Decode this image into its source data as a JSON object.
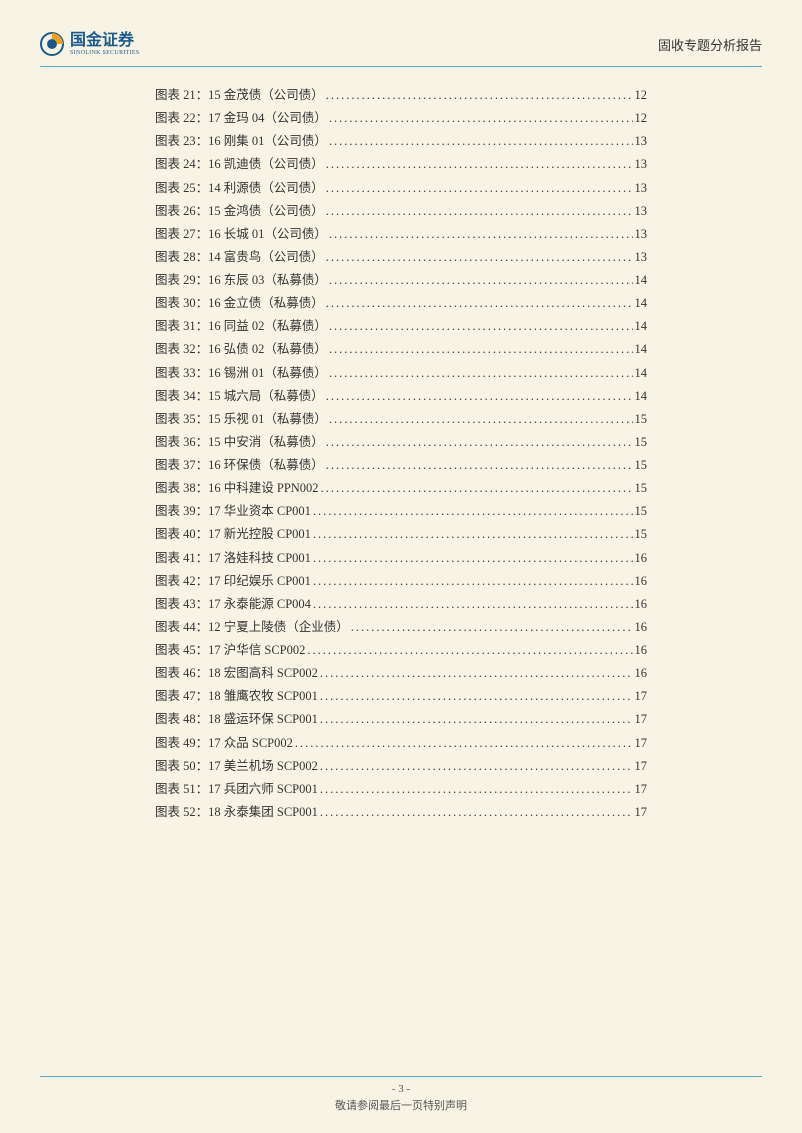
{
  "page_background": "#f8f4e5",
  "accent_color": "#5ba8c4",
  "header": {
    "logo_main": "国金证券",
    "logo_sub": "SINOLINK SECURITIES",
    "report_title": "固收专题分析报告"
  },
  "toc": [
    {
      "num": "图表 21：",
      "title": "15 金茂债（公司债）",
      "page": "12"
    },
    {
      "num": "图表 22：",
      "title": "17 金玛 04（公司债）",
      "page": "12"
    },
    {
      "num": "图表 23：",
      "title": "16 刚集 01（公司债）",
      "page": "13"
    },
    {
      "num": "图表 24：",
      "title": "16 凯迪债（公司债）",
      "page": "13"
    },
    {
      "num": "图表 25：",
      "title": "14 利源债（公司债）",
      "page": "13"
    },
    {
      "num": "图表 26：",
      "title": "15 金鸿债（公司债）",
      "page": "13"
    },
    {
      "num": "图表 27：",
      "title": "16 长城 01（公司债）",
      "page": "13"
    },
    {
      "num": "图表 28：",
      "title": "14 富贵鸟（公司债）",
      "page": "13"
    },
    {
      "num": "图表 29：",
      "title": "16 东辰 03（私募债）",
      "page": "14"
    },
    {
      "num": "图表 30：",
      "title": "16 金立债（私募债）",
      "page": "14"
    },
    {
      "num": "图表 31：",
      "title": "16 同益 02（私募债）",
      "page": "14"
    },
    {
      "num": "图表 32：",
      "title": "16 弘债 02（私募债）",
      "page": "14"
    },
    {
      "num": "图表 33：",
      "title": "16 锡洲 01（私募债）",
      "page": "14"
    },
    {
      "num": "图表 34：",
      "title": "15 城六局（私募债）",
      "page": "14"
    },
    {
      "num": "图表 35：",
      "title": "15 乐视 01（私募债）",
      "page": "15"
    },
    {
      "num": "图表 36：",
      "title": "15 中安消（私募债）",
      "page": "15"
    },
    {
      "num": "图表 37：",
      "title": "16 环保债（私募债）",
      "page": "15"
    },
    {
      "num": "图表 38：",
      "title": "16 中科建设 PPN002",
      "page": "15"
    },
    {
      "num": "图表 39：",
      "title": "17 华业资本 CP001",
      "page": "15"
    },
    {
      "num": "图表 40：",
      "title": "17 新光控股 CP001",
      "page": "15"
    },
    {
      "num": "图表 41：",
      "title": "17 洛娃科技 CP001",
      "page": "16"
    },
    {
      "num": "图表 42：",
      "title": "17 印纪娱乐 CP001",
      "page": "16"
    },
    {
      "num": "图表 43：",
      "title": "17 永泰能源 CP004",
      "page": "16"
    },
    {
      "num": "图表 44：",
      "title": "12 宁夏上陵债（企业债）",
      "page": "16"
    },
    {
      "num": "图表 45：",
      "title": "17 沪华信 SCP002",
      "page": "16"
    },
    {
      "num": "图表 46：",
      "title": "18 宏图高科 SCP002",
      "page": "16"
    },
    {
      "num": "图表 47：",
      "title": "18 雏鹰农牧 SCP001",
      "page": "17"
    },
    {
      "num": "图表 48：",
      "title": "18 盛运环保 SCP001",
      "page": "17"
    },
    {
      "num": "图表 49：",
      "title": "17 众品 SCP002",
      "page": "17"
    },
    {
      "num": "图表 50：",
      "title": "17 美兰机场 SCP002",
      "page": "17"
    },
    {
      "num": "图表 51：",
      "title": "17 兵团六师 SCP001",
      "page": "17"
    },
    {
      "num": "图表 52：",
      "title": "18 永泰集团 SCP001",
      "page": "17"
    }
  ],
  "footer": {
    "page_label": "- 3 -",
    "notice": "敬请参阅最后一页特别声明"
  },
  "styling": {
    "body_font_size": 12.5,
    "line_height": 1.85,
    "text_color": "#333333"
  }
}
